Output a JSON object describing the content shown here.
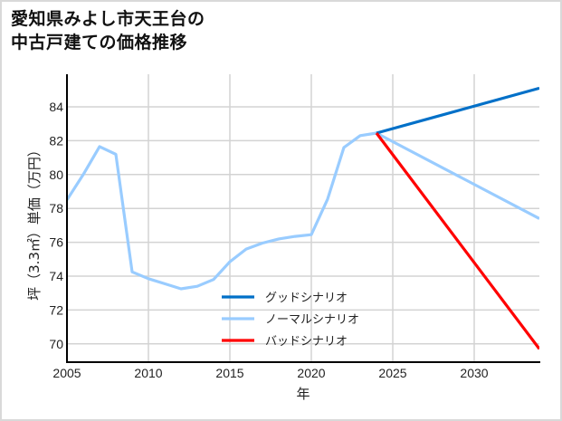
{
  "title_line1": "愛知県みよし市天王台の",
  "title_line2": "中古戸建ての価格推移",
  "chart_data": {
    "type": "line",
    "title": "愛知県みよし市天王台の中古戸建ての価格推移",
    "xlabel": "年",
    "ylabel": "坪（3.3㎡）単価（万円）",
    "xlim": [
      2005,
      2034
    ],
    "ylim": [
      69,
      86
    ],
    "xticks": [
      2005,
      2010,
      2015,
      2020,
      2025,
      2030
    ],
    "yticks": [
      70,
      72,
      74,
      76,
      78,
      80,
      82,
      84
    ],
    "grid": true,
    "legend_position": "lower center (inside plot)",
    "historical": {
      "x": [
        2005,
        2006,
        2007,
        2008,
        2009,
        2010,
        2011,
        2012,
        2013,
        2014,
        2015,
        2016,
        2017,
        2018,
        2019,
        2020,
        2021,
        2022,
        2023,
        2024
      ],
      "y": [
        78.5,
        80.0,
        81.65,
        81.2,
        74.25,
        73.85,
        73.55,
        73.25,
        73.4,
        73.8,
        74.85,
        75.6,
        75.95,
        76.2,
        76.35,
        76.45,
        78.55,
        81.6,
        82.3,
        82.45
      ]
    },
    "series": [
      {
        "name": "グッドシナリオ",
        "color": "#0070c8",
        "x": [
          2024,
          2034
        ],
        "y": [
          82.45,
          85.1
        ]
      },
      {
        "name": "ノーマルシナリオ",
        "color": "#99ccff",
        "x": [
          2005,
          2006,
          2007,
          2008,
          2009,
          2010,
          2011,
          2012,
          2013,
          2014,
          2015,
          2016,
          2017,
          2018,
          2019,
          2020,
          2021,
          2022,
          2023,
          2024,
          2034
        ],
        "y": [
          78.5,
          80.0,
          81.65,
          81.2,
          74.25,
          73.85,
          73.55,
          73.25,
          73.4,
          73.8,
          74.85,
          75.6,
          75.95,
          76.2,
          76.35,
          76.45,
          78.55,
          81.6,
          82.3,
          82.45,
          77.4
        ]
      },
      {
        "name": "バッドシナリオ",
        "color": "#ff0000",
        "x": [
          2024,
          2034
        ],
        "y": [
          82.45,
          69.7
        ]
      }
    ]
  },
  "legend": [
    {
      "label": "グッドシナリオ",
      "color": "#0070c8"
    },
    {
      "label": "ノーマルシナリオ",
      "color": "#99ccff"
    },
    {
      "label": "バッドシナリオ",
      "color": "#ff0000"
    }
  ]
}
